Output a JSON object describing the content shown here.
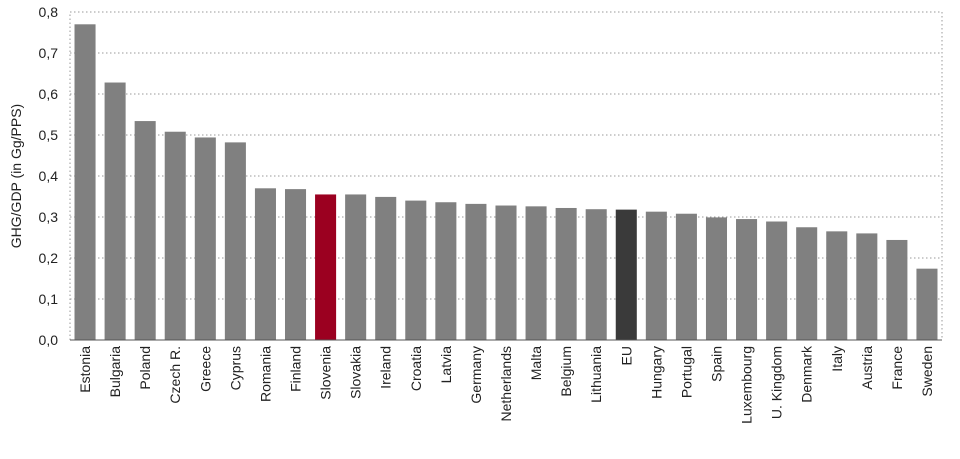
{
  "chart_data": {
    "type": "bar",
    "title": "",
    "xlabel": "",
    "ylabel": "GHG/GDP (in Gg/PPS)",
    "ylim": [
      0,
      0.8
    ],
    "yticks": [
      0,
      0.1,
      0.2,
      0.3,
      0.4,
      0.5,
      0.6,
      0.7,
      0.8
    ],
    "ytick_labels": [
      "0,0",
      "0,1",
      "0,2",
      "0,3",
      "0,4",
      "0,5",
      "0,6",
      "0,7",
      "0,8"
    ],
    "grid": true,
    "categories": [
      "Estonia",
      "Bulgaria",
      "Poland",
      "Czech R.",
      "Greece",
      "Cyprus",
      "Romania",
      "Finland",
      "Slovenia",
      "Slovakia",
      "Ireland",
      "Croatia",
      "Latvia",
      "Germany",
      "Netherlands",
      "Malta",
      "Belgium",
      "Lithuania",
      "EU",
      "Hungary",
      "Portugal",
      "Spain",
      "Luxembourg",
      "U. Kingdom",
      "Denmark",
      "Italy",
      "Austria",
      "France",
      "Sweden"
    ],
    "values": [
      0.77,
      0.628,
      0.534,
      0.508,
      0.494,
      0.482,
      0.37,
      0.368,
      0.355,
      0.355,
      0.349,
      0.34,
      0.336,
      0.332,
      0.328,
      0.326,
      0.322,
      0.319,
      0.318,
      0.313,
      0.308,
      0.299,
      0.295,
      0.289,
      0.275,
      0.265,
      0.26,
      0.244,
      0.174
    ],
    "colors": {
      "default": "#808080",
      "Slovenia": "#9b0020",
      "EU": "#3a3a3a"
    }
  }
}
